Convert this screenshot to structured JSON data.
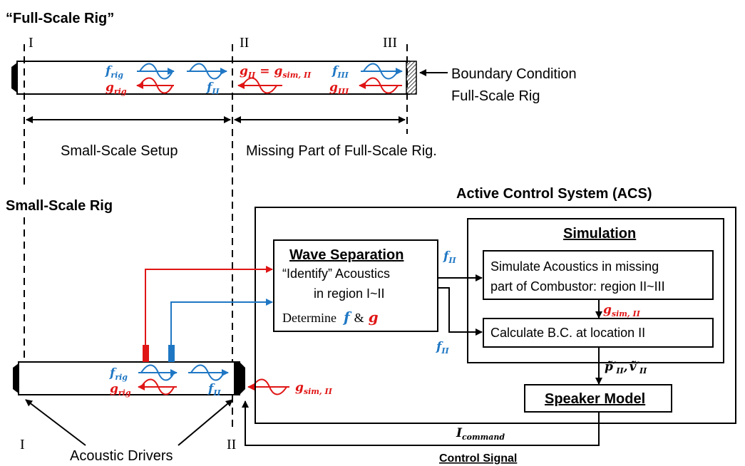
{
  "colors": {
    "line": "#000000",
    "blue": "#1f77c4",
    "red": "#e01515",
    "background": "#ffffff"
  },
  "full_scale": {
    "title": "“Full-Scale Rig”",
    "station_1": "I",
    "station_2": "II",
    "station_3": "III",
    "f_rig": "f",
    "f_rig_sub": "rig",
    "g_rig": "g",
    "g_rig_sub": "rig",
    "f_II": "f",
    "f_II_sub": "II",
    "g_eq_left": "g",
    "g_eq_left_sub": "II",
    "g_eq_mid": "=",
    "g_eq_right": "g",
    "g_eq_right_sub": "sim, II",
    "f_III": "f",
    "f_III_sub": "III",
    "g_III": "g",
    "g_III_sub": "III",
    "boundary_line1": "Boundary Condition",
    "boundary_line2": "Full-Scale Rig",
    "small_setup_label": "Small-Scale Setup",
    "missing_part_label": "Missing Part of Full-Scale Rig."
  },
  "small_scale": {
    "title": "Small-Scale Rig",
    "station_1": "I",
    "station_2": "II",
    "f_rig": "f",
    "f_rig_sub": "rig",
    "g_rig": "g",
    "g_rig_sub": "rig",
    "f_II": "f",
    "f_II_sub": "II",
    "g_sim": "g",
    "g_sim_sub": "sim, II",
    "drivers_label": "Acoustic Drivers"
  },
  "acs": {
    "title": "Active Control System (ACS)",
    "wave_sep_title": "Wave Separation",
    "wave_sep_line1": "“Identify” Acoustics",
    "wave_sep_line2": "in region I~II",
    "wave_sep_line3a": "Determine",
    "wave_sep_f": "f",
    "wave_sep_amp": "&",
    "wave_sep_g": "g",
    "f_out_top": "f",
    "f_out_top_sub": "II",
    "f_out_bottom": "f",
    "f_out_bottom_sub": "II",
    "simulation_title": "Simulation",
    "sim_box_line1": "Simulate Acoustics in missing",
    "sim_box_line2": "part of Combustor: region II~III",
    "g_sim": "g",
    "g_sim_sub": "sim, II",
    "calc_box": "Calculate B.C. at location II",
    "pv_label": "p̃′",
    "pv_label_sub": "II",
    "pv_comma": ",",
    "v_label": "ṽ′",
    "v_label_sub": "II",
    "speaker_model": "Speaker Model",
    "i_command": "I",
    "i_command_sub": "command",
    "control_signal": "Control Signal"
  }
}
